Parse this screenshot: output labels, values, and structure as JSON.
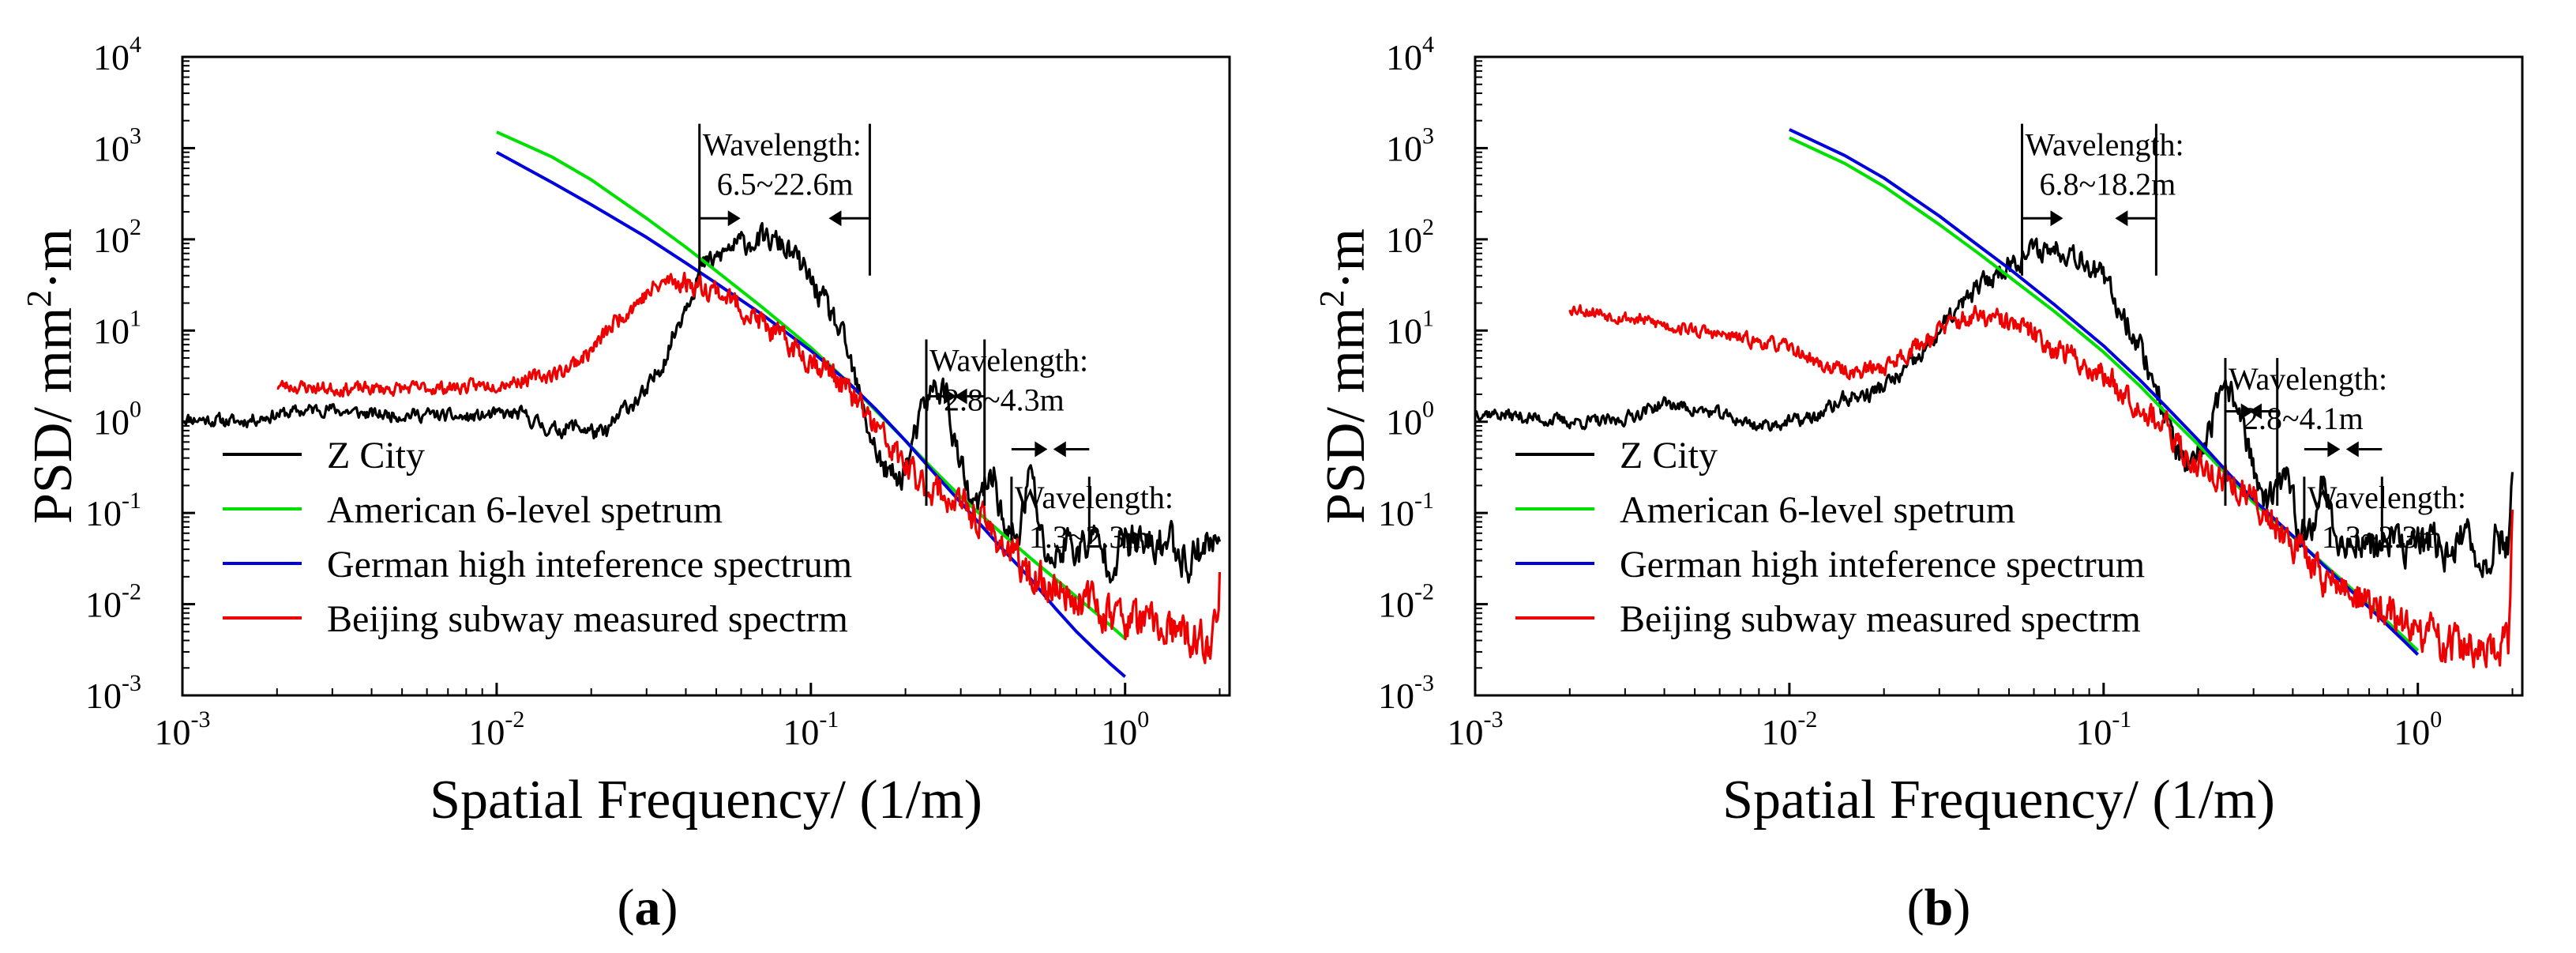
{
  "figure": {
    "panels": [
      {
        "panel_label": "(a)",
        "label_text": "a",
        "annotations": [
          {
            "title": "Wavelength:",
            "range": "6.5~22.6m",
            "f_left": 0.0442,
            "f_right": 0.154,
            "y_top": 1850,
            "y_bottom": 40,
            "arrow_y": 170
          },
          {
            "title": "Wavelength:",
            "range": "2.8~4.3m",
            "f_left": 0.233,
            "f_right": 0.357,
            "y_top": 8,
            "y_bottom": 0.12,
            "arrow_y": 1.9
          },
          {
            "title": "Wavelength:",
            "range": "1.3~2.3m",
            "f_left": 0.435,
            "f_right": 0.769,
            "y_top": 0.25,
            "y_bottom": 0.05,
            "arrow_y": 0.5
          }
        ]
      },
      {
        "panel_label": "(b)",
        "label_text": "b",
        "annotations": [
          {
            "title": "Wavelength:",
            "range": "6.8~18.2m",
            "f_left": 0.055,
            "f_right": 0.147,
            "y_top": 1850,
            "y_bottom": 40,
            "arrow_y": 170
          },
          {
            "title": "Wavelength:",
            "range": "2.8~4.1m",
            "f_left": 0.244,
            "f_right": 0.357,
            "y_top": 5,
            "y_bottom": 0.12,
            "arrow_y": 1.3
          },
          {
            "title": "Wavelength:",
            "range": "1.3~2.3m",
            "f_left": 0.435,
            "f_right": 0.769,
            "y_top": 0.25,
            "y_bottom": 0.05,
            "arrow_y": 0.5
          }
        ]
      }
    ],
    "colors": {
      "z_city": "#000000",
      "american": "#00e000",
      "german": "#0000dd",
      "beijing": "#ee0000"
    }
  },
  "chart_data": [
    {
      "type": "line",
      "title": "(a)",
      "xlabel": "Spatial Frequency/ (1/m)",
      "ylabel": "PSD/ mm²·m",
      "ylabel_parts": {
        "main": "PSD/ mm",
        "exp": "2",
        "tail": "·m"
      },
      "xscale": "log",
      "yscale": "log",
      "xlim": [
        0.001,
        2.15
      ],
      "ylim": [
        0.001,
        10000
      ],
      "xticks": [
        {
          "base": "10",
          "exp": "-3"
        },
        {
          "base": "10",
          "exp": "-2"
        },
        {
          "base": "10",
          "exp": "-1"
        },
        {
          "base": "10",
          "exp": "0"
        }
      ],
      "yticks": [
        {
          "base": "10",
          "exp": "-3"
        },
        {
          "base": "10",
          "exp": "-2"
        },
        {
          "base": "10",
          "exp": "-1"
        },
        {
          "base": "10",
          "exp": "0"
        },
        {
          "base": "10",
          "exp": "1"
        },
        {
          "base": "10",
          "exp": "2"
        },
        {
          "base": "10",
          "exp": "3"
        },
        {
          "base": "10",
          "exp": "4"
        }
      ],
      "legend_position": "bottom-left",
      "series": [
        {
          "name": "Z City",
          "color": "#000000",
          "noisy": true,
          "seed": 11,
          "x": [
            0.001,
            0.0015,
            0.002,
            0.0028,
            0.004,
            0.006,
            0.008,
            0.01,
            0.012,
            0.015,
            0.018,
            0.022,
            0.026,
            0.03,
            0.035,
            0.04,
            0.045,
            0.05,
            0.055,
            0.06,
            0.07,
            0.08,
            0.09,
            0.1,
            0.11,
            0.12,
            0.13,
            0.15,
            0.17,
            0.19,
            0.21,
            0.23,
            0.25,
            0.27,
            0.29,
            0.31,
            0.33,
            0.35,
            0.38,
            0.42,
            0.46,
            0.5,
            0.55,
            0.6,
            0.65,
            0.7,
            0.8,
            0.9,
            1.0,
            1.2,
            1.4,
            1.6,
            1.8,
            1.95,
            2.0
          ],
          "values": [
            1.1,
            1.0,
            1.2,
            1.4,
            1.2,
            1.2,
            1.1,
            1.2,
            1.2,
            0.8,
            0.9,
            0.7,
            1.5,
            2.0,
            6.0,
            20,
            50,
            60,
            80,
            90,
            100,
            90,
            60,
            35,
            20,
            12,
            6,
            1.0,
            0.3,
            0.22,
            0.5,
            1.5,
            2.5,
            2.0,
            0.5,
            0.2,
            0.1,
            0.15,
            0.3,
            0.05,
            0.06,
            0.3,
            0.04,
            0.03,
            0.05,
            0.04,
            0.05,
            0.03,
            0.05,
            0.04,
            0.05,
            0.03,
            0.05,
            0.04,
            0.08
          ]
        },
        {
          "name": "American 6-level spetrum",
          "color": "#00e000",
          "noisy": false,
          "x": [
            0.01,
            0.015,
            0.02,
            0.03,
            0.04,
            0.05,
            0.07,
            0.1,
            0.13,
            0.16,
            0.2,
            0.25,
            0.3,
            0.4,
            0.5,
            0.6,
            0.7,
            0.8,
            0.9,
            1.0
          ],
          "values": [
            1500,
            800,
            450,
            170,
            82,
            45,
            18,
            6.5,
            2.8,
            1.35,
            0.62,
            0.28,
            0.15,
            0.062,
            0.032,
            0.019,
            0.012,
            0.0082,
            0.0058,
            0.0042
          ]
        },
        {
          "name": "German high inteference spectrum",
          "color": "#0000dd",
          "noisy": false,
          "x": [
            0.01,
            0.015,
            0.02,
            0.03,
            0.04,
            0.05,
            0.07,
            0.1,
            0.13,
            0.16,
            0.2,
            0.25,
            0.3,
            0.4,
            0.5,
            0.6,
            0.7,
            0.8,
            0.9,
            1.0
          ],
          "values": [
            900,
            420,
            240,
            105,
            55,
            33,
            15,
            6.0,
            2.8,
            1.4,
            0.62,
            0.26,
            0.13,
            0.043,
            0.019,
            0.009,
            0.005,
            0.0032,
            0.0022,
            0.0016
          ]
        },
        {
          "name": "Beijing subway measured spectrm",
          "color": "#ee0000",
          "noisy": true,
          "seed": 23,
          "x": [
            0.002,
            0.003,
            0.005,
            0.008,
            0.01,
            0.013,
            0.016,
            0.02,
            0.025,
            0.03,
            0.035,
            0.04,
            0.05,
            0.06,
            0.07,
            0.08,
            0.1,
            0.12,
            0.15,
            0.18,
            0.22,
            0.25,
            0.3,
            0.35,
            0.4,
            0.5,
            0.6,
            0.7,
            0.8,
            0.9,
            1.0,
            1.2,
            1.4,
            1.6,
            1.8,
            1.95,
            2.0
          ],
          "values": [
            2.5,
            2.3,
            2.3,
            2.4,
            2.6,
            3.0,
            3.5,
            6.0,
            15,
            25,
            35,
            34,
            28,
            18,
            12,
            8,
            5,
            3.2,
            1.2,
            0.5,
            0.22,
            0.18,
            0.12,
            0.08,
            0.05,
            0.02,
            0.015,
            0.012,
            0.01,
            0.008,
            0.007,
            0.006,
            0.005,
            0.004,
            0.0035,
            0.005,
            0.025
          ]
        }
      ]
    },
    {
      "type": "line",
      "title": "(b)",
      "xlabel": "Spatial Frequency/ (1/m)",
      "ylabel": "PSD/ mm²·m",
      "ylabel_parts": {
        "main": "PSD/ mm",
        "exp": "2",
        "tail": "·m"
      },
      "xscale": "log",
      "yscale": "log",
      "xlim": [
        0.001,
        2.15
      ],
      "ylim": [
        0.001,
        10000
      ],
      "xticks": [
        {
          "base": "10",
          "exp": "-3"
        },
        {
          "base": "10",
          "exp": "-2"
        },
        {
          "base": "10",
          "exp": "-1"
        },
        {
          "base": "10",
          "exp": "0"
        }
      ],
      "yticks": [
        {
          "base": "10",
          "exp": "-3"
        },
        {
          "base": "10",
          "exp": "-2"
        },
        {
          "base": "10",
          "exp": "-1"
        },
        {
          "base": "10",
          "exp": "0"
        },
        {
          "base": "10",
          "exp": "1"
        },
        {
          "base": "10",
          "exp": "2"
        },
        {
          "base": "10",
          "exp": "3"
        },
        {
          "base": "10",
          "exp": "4"
        }
      ],
      "legend_position": "bottom-left",
      "series": [
        {
          "name": "Z City",
          "color": "#000000",
          "noisy": true,
          "seed": 37,
          "x": [
            0.001,
            0.0015,
            0.002,
            0.0028,
            0.004,
            0.006,
            0.008,
            0.01,
            0.012,
            0.015,
            0.018,
            0.022,
            0.026,
            0.03,
            0.035,
            0.04,
            0.045,
            0.05,
            0.055,
            0.06,
            0.07,
            0.08,
            0.09,
            0.1,
            0.11,
            0.12,
            0.13,
            0.15,
            0.17,
            0.19,
            0.21,
            0.23,
            0.25,
            0.27,
            0.29,
            0.31,
            0.33,
            0.35,
            0.38,
            0.42,
            0.46,
            0.5,
            0.55,
            0.6,
            0.65,
            0.7,
            0.8,
            0.9,
            1.0,
            1.2,
            1.4,
            1.6,
            1.8,
            1.95,
            2.0
          ],
          "values": [
            1.3,
            1.1,
            1.0,
            1.0,
            1.6,
            1.2,
            0.9,
            1.0,
            1.1,
            1.8,
            2.0,
            3.0,
            5.0,
            10,
            18,
            30,
            40,
            55,
            65,
            75,
            80,
            75,
            55,
            35,
            20,
            12,
            7,
            2.0,
            0.5,
            0.25,
            0.6,
            1.5,
            2.0,
            1.6,
            0.5,
            0.2,
            0.12,
            0.15,
            0.25,
            0.06,
            0.08,
            0.25,
            0.05,
            0.04,
            0.06,
            0.04,
            0.05,
            0.04,
            0.05,
            0.04,
            0.05,
            0.03,
            0.05,
            0.05,
            0.4
          ]
        },
        {
          "name": "American 6-level spetrum",
          "color": "#00e000",
          "noisy": false,
          "x": [
            0.01,
            0.015,
            0.02,
            0.03,
            0.04,
            0.05,
            0.07,
            0.1,
            0.13,
            0.16,
            0.2,
            0.25,
            0.3,
            0.4,
            0.5,
            0.6,
            0.7,
            0.8,
            0.9,
            1.0
          ],
          "values": [
            1300,
            680,
            380,
            145,
            70,
            39,
            16,
            5.8,
            2.5,
            1.2,
            0.56,
            0.25,
            0.13,
            0.055,
            0.028,
            0.016,
            0.0098,
            0.0064,
            0.0044,
            0.0031
          ]
        },
        {
          "name": "German high inteference spectrum",
          "color": "#0000dd",
          "noisy": false,
          "x": [
            0.01,
            0.015,
            0.02,
            0.03,
            0.04,
            0.05,
            0.07,
            0.1,
            0.13,
            0.16,
            0.2,
            0.25,
            0.3,
            0.4,
            0.5,
            0.6,
            0.7,
            0.8,
            0.9,
            1.0
          ],
          "values": [
            1600,
            830,
            470,
            180,
            85,
            48,
            19,
            6.8,
            2.9,
            1.4,
            0.63,
            0.27,
            0.14,
            0.056,
            0.027,
            0.015,
            0.0092,
            0.0059,
            0.004,
            0.0028
          ]
        },
        {
          "name": "Beijing subway measured spectrm",
          "color": "#ee0000",
          "noisy": true,
          "seed": 53,
          "x": [
            0.002,
            0.003,
            0.005,
            0.008,
            0.01,
            0.013,
            0.016,
            0.02,
            0.025,
            0.03,
            0.035,
            0.04,
            0.05,
            0.06,
            0.07,
            0.08,
            0.1,
            0.12,
            0.15,
            0.18,
            0.22,
            0.25,
            0.3,
            0.35,
            0.4,
            0.5,
            0.6,
            0.7,
            0.8,
            0.9,
            1.0,
            1.2,
            1.4,
            1.6,
            1.8,
            1.95,
            2.0
          ],
          "values": [
            18,
            14,
            10,
            7.5,
            6.5,
            4.0,
            3.5,
            4.0,
            6.5,
            10,
            13,
            14,
            12,
            9,
            6.5,
            5,
            3.2,
            2.0,
            1.0,
            0.45,
            0.28,
            0.22,
            0.13,
            0.08,
            0.05,
            0.02,
            0.014,
            0.01,
            0.008,
            0.006,
            0.005,
            0.004,
            0.0035,
            0.003,
            0.0025,
            0.004,
            0.12
          ]
        }
      ]
    }
  ]
}
